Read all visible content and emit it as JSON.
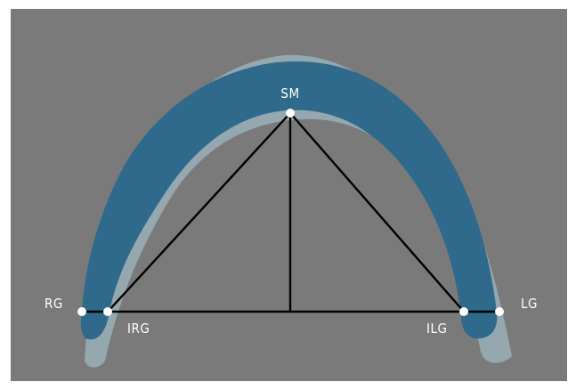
{
  "colors": {
    "background": "#7a7a7a",
    "frame": "#ffffff",
    "jaw": "#2f6a8c",
    "jaw_shadow": "#9fb8c2",
    "lines": "#000000",
    "points": "#ffffff"
  },
  "labels": {
    "sm": "SM",
    "rg": "RG",
    "irg": "IRG",
    "ilg": "ILG",
    "lg": "LG"
  }
}
